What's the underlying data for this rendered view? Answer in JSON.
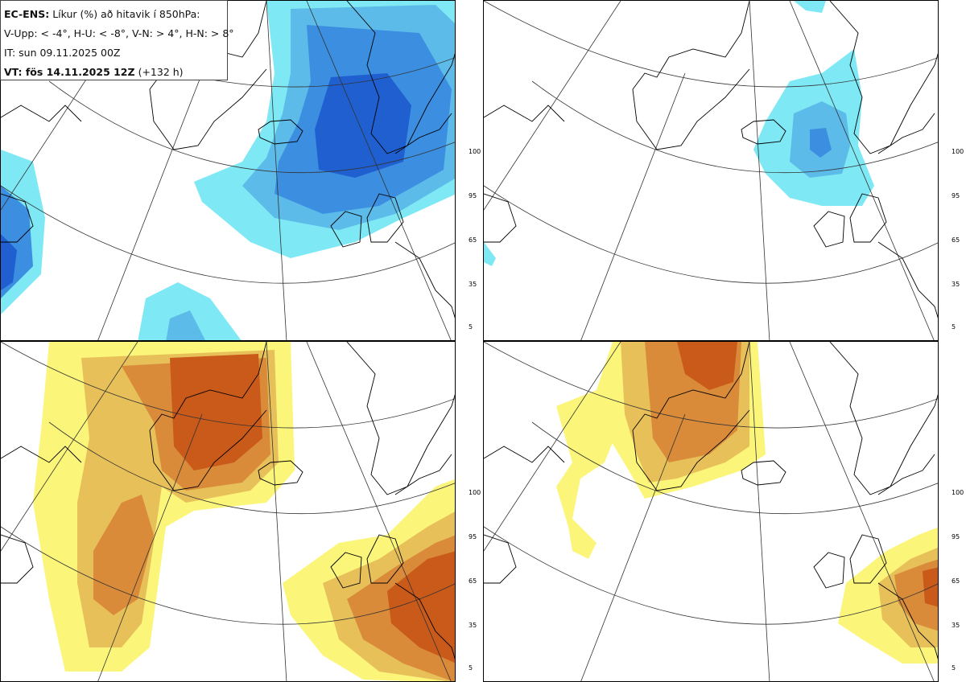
{
  "header": {
    "model_label": "EC-ENS:",
    "title_rest": "Líkur (%) að hitavik í 850hPa:",
    "thresholds": "V-Upp: < -4°, H-U: < -8°, V-N: > 4°, H-N: > 8°",
    "initial_time": "IT: sun 09.11.2025 00Z",
    "valid_label": "VT: fös 14.11.2025 12Z",
    "valid_offset": "(+132 h)"
  },
  "colorbars": {
    "blue": {
      "ticks": [
        "100",
        "95",
        "65",
        "35",
        "5"
      ],
      "colors": [
        "#1f5fcf",
        "#3b8ee0",
        "#5cbbe8",
        "#7ee8f4"
      ]
    },
    "orange": {
      "ticks": [
        "100",
        "95",
        "65",
        "35",
        "5"
      ],
      "colors": [
        "#c95a1a",
        "#d98b3a",
        "#e8c05a",
        "#fbf57a"
      ]
    }
  },
  "panels": [
    {
      "id": "cold-moderate",
      "scheme": "blue"
    },
    {
      "id": "cold-strong",
      "scheme": "blue"
    },
    {
      "id": "warm-moderate",
      "scheme": "orange"
    },
    {
      "id": "warm-strong",
      "scheme": "orange"
    }
  ]
}
